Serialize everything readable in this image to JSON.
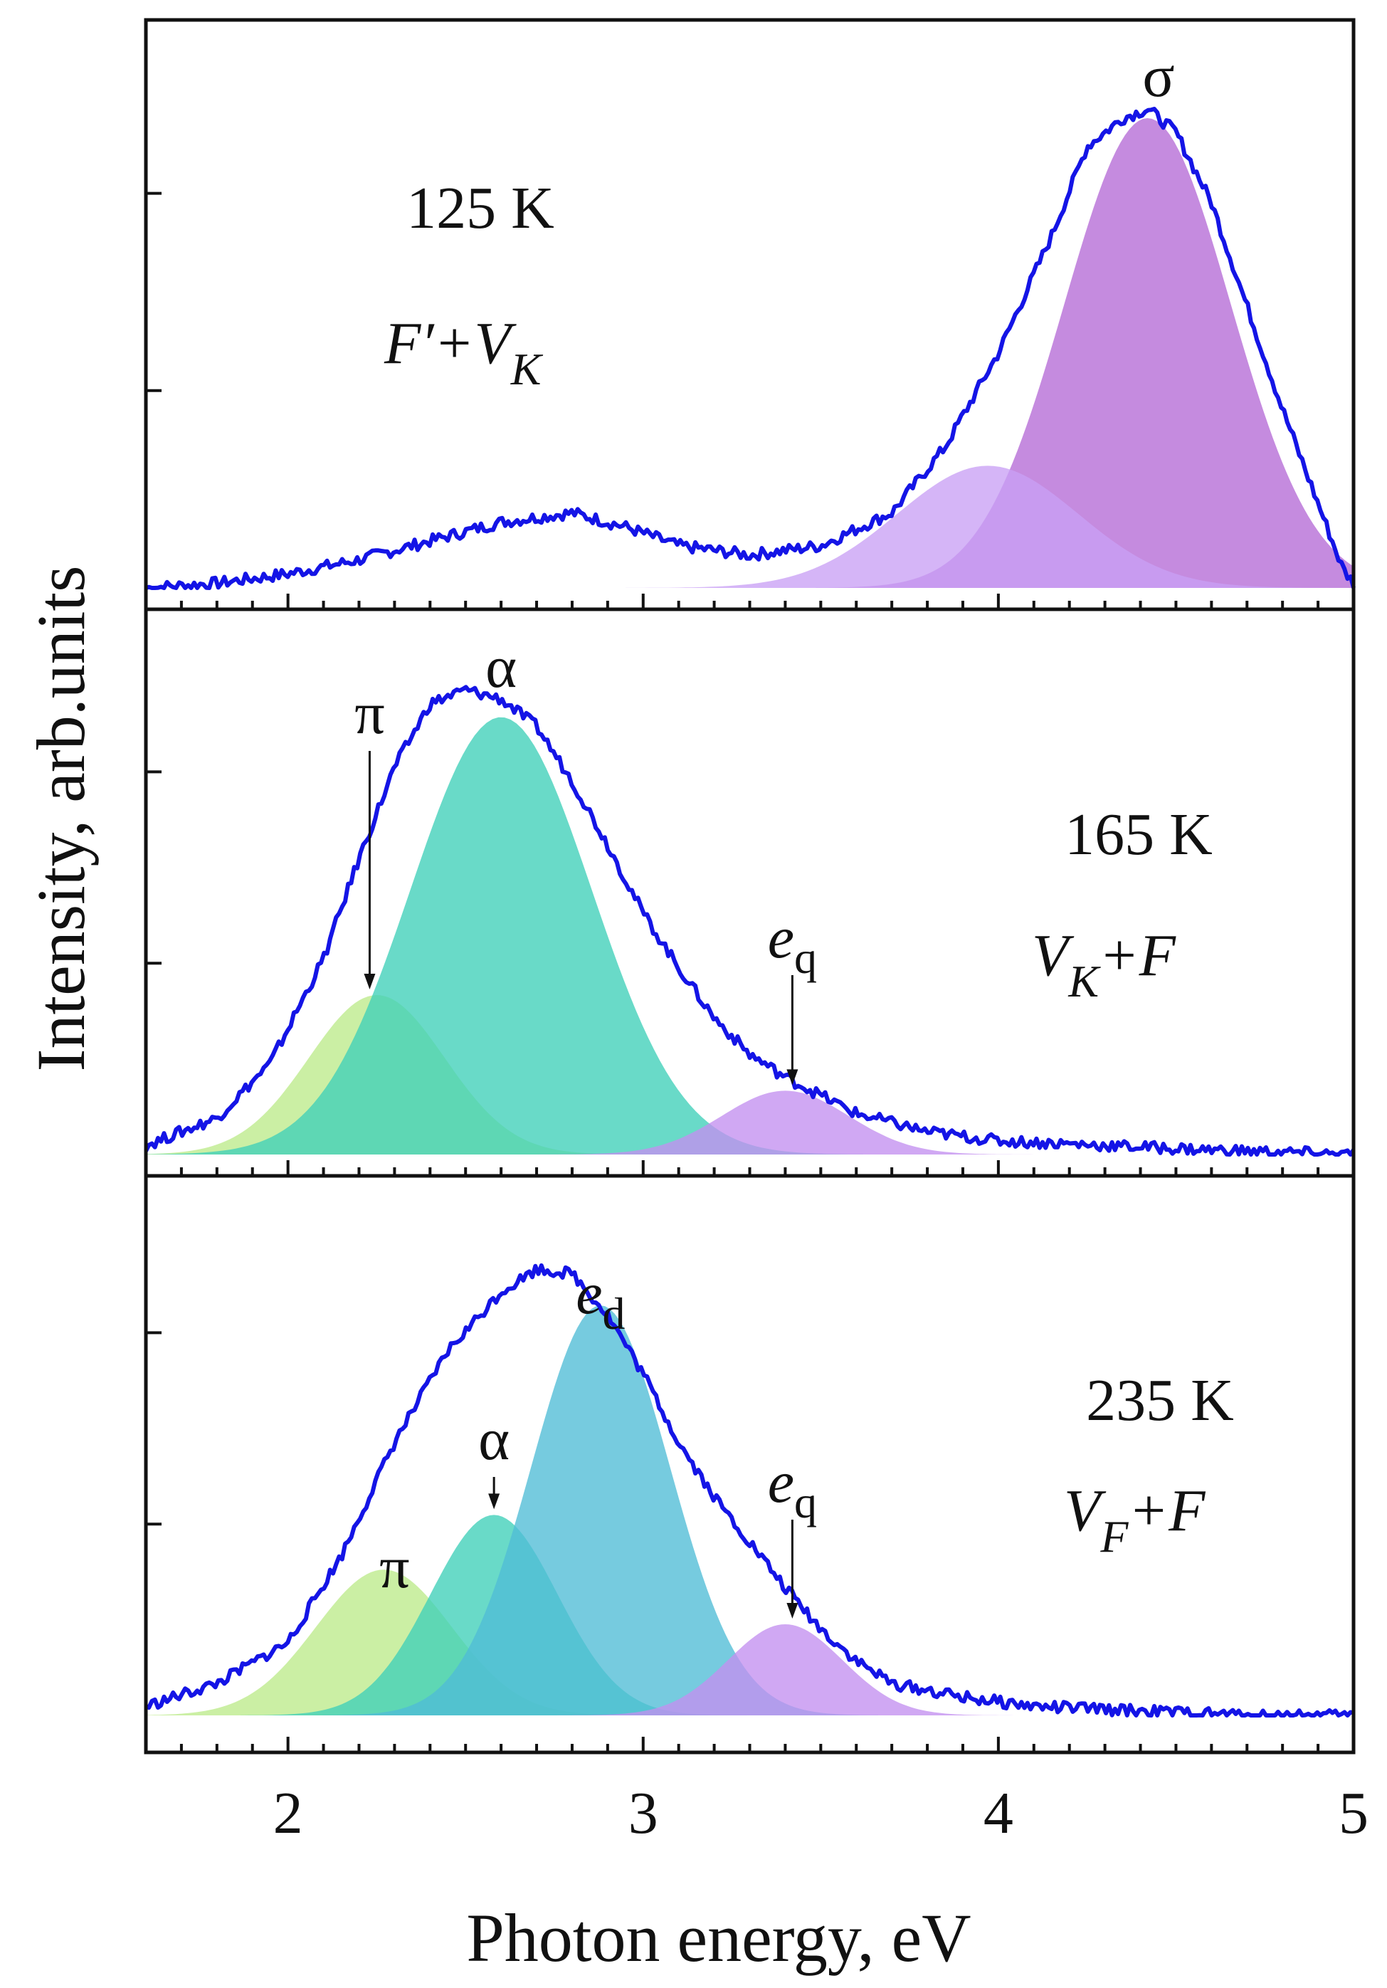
{
  "figure": {
    "xlabel": "Photon energy, eV",
    "ylabel": "Intensity, arb.units"
  },
  "colors": {
    "curve": "#1414e6",
    "frame": "#111111",
    "violet_main": "#b56ad6",
    "violet_light": "#c9a0f5",
    "teal": "#3fd0b8",
    "green_light": "#bdeb8a",
    "blue_teal": "#50bcd6",
    "violet_small": "#c38ff0"
  },
  "chart_data": [
    {
      "type": "line",
      "panel": "top",
      "title": "125 K",
      "subtitle": "F′+V_K",
      "subtitle_parts": {
        "main1": "F′+V",
        "sub1": "K"
      },
      "xlim": [
        1.6,
        5.0
      ],
      "ylim": [
        0,
        1.1
      ],
      "x_ticks": [
        2,
        3,
        4,
        5
      ],
      "measured": {
        "x": [
          1.6,
          1.8,
          2.0,
          2.2,
          2.4,
          2.6,
          2.8,
          2.95,
          3.1,
          3.3,
          3.5,
          3.7,
          3.85,
          4.0,
          4.15,
          4.25,
          4.35,
          4.42,
          4.5,
          4.6,
          4.7,
          4.8,
          4.9,
          4.97,
          5.0
        ],
        "y": [
          0.0,
          0.01,
          0.03,
          0.06,
          0.1,
          0.14,
          0.16,
          0.13,
          0.09,
          0.07,
          0.09,
          0.16,
          0.3,
          0.5,
          0.75,
          0.94,
          1.0,
          1.02,
          0.97,
          0.82,
          0.6,
          0.38,
          0.18,
          0.04,
          0.01
        ]
      },
      "bands": [
        {
          "label": "σ",
          "center": 4.42,
          "fwhm": 0.55,
          "amplitude": 1.0,
          "color": "#b56ad6"
        },
        {
          "label": "",
          "center": 3.97,
          "fwhm": 0.6,
          "amplitude": 0.26,
          "color": "#c9a0f5"
        }
      ]
    },
    {
      "type": "line",
      "panel": "middle",
      "title": "165 K",
      "subtitle": "V_K+F",
      "subtitle_parts": {
        "main1": "V",
        "sub1": "K",
        "main2": "+F"
      },
      "xlim": [
        1.6,
        5.0
      ],
      "ylim": [
        0,
        1.1
      ],
      "x_ticks": [
        2,
        3,
        4,
        5
      ],
      "measured": {
        "x": [
          1.6,
          1.8,
          1.95,
          2.1,
          2.2,
          2.3,
          2.4,
          2.5,
          2.6,
          2.7,
          2.8,
          2.9,
          3.0,
          3.1,
          3.2,
          3.3,
          3.4,
          3.5,
          3.6,
          3.8,
          4.0,
          4.3,
          4.6,
          5.0
        ],
        "y": [
          0.02,
          0.08,
          0.2,
          0.43,
          0.65,
          0.85,
          0.99,
          1.02,
          1.0,
          0.94,
          0.82,
          0.68,
          0.53,
          0.41,
          0.3,
          0.22,
          0.17,
          0.13,
          0.09,
          0.05,
          0.03,
          0.02,
          0.01,
          0.0
        ]
      },
      "bands": [
        {
          "label": "π",
          "center": 2.25,
          "fwhm": 0.45,
          "amplitude": 0.35,
          "color": "#bdeb8a"
        },
        {
          "label": "α",
          "center": 2.6,
          "fwhm": 0.6,
          "amplitude": 0.96,
          "color": "#3fd0b8"
        },
        {
          "label": "e_q",
          "center": 3.4,
          "fwhm": 0.42,
          "amplitude": 0.14,
          "color": "#c38ff0"
        }
      ],
      "annotations": [
        {
          "label": "π",
          "x": 2.23
        },
        {
          "label": "α",
          "x": 2.6
        },
        {
          "label": "e_q",
          "x": 3.42
        }
      ]
    },
    {
      "type": "line",
      "panel": "bottom",
      "title": "235 K",
      "subtitle": "V_F+F",
      "subtitle_parts": {
        "main1": "V",
        "sub1": "F",
        "main2": "+F"
      },
      "xlim": [
        1.6,
        5.0
      ],
      "ylim": [
        0,
        1.1
      ],
      "x_ticks": [
        2,
        3,
        4,
        5
      ],
      "x_tick_labels": [
        "2",
        "3",
        "4",
        "5"
      ],
      "measured": {
        "x": [
          1.6,
          1.8,
          2.0,
          2.15,
          2.3,
          2.45,
          2.6,
          2.7,
          2.8,
          2.9,
          3.0,
          3.1,
          3.2,
          3.3,
          3.4,
          3.5,
          3.6,
          3.7,
          3.9,
          4.1,
          4.4,
          4.7,
          5.0
        ],
        "y": [
          0.02,
          0.07,
          0.16,
          0.35,
          0.6,
          0.8,
          0.93,
          0.98,
          0.97,
          0.88,
          0.75,
          0.6,
          0.48,
          0.38,
          0.28,
          0.19,
          0.12,
          0.07,
          0.04,
          0.02,
          0.01,
          0.0,
          0.0
        ]
      },
      "bands": [
        {
          "label": "π",
          "center": 2.27,
          "fwhm": 0.45,
          "amplitude": 0.32,
          "color": "#bdeb8a"
        },
        {
          "label": "α",
          "center": 2.58,
          "fwhm": 0.42,
          "amplitude": 0.44,
          "color": "#3fd0b8"
        },
        {
          "label": "e_d",
          "center": 2.88,
          "fwhm": 0.46,
          "amplitude": 0.9,
          "color": "#50bcd6"
        },
        {
          "label": "e_q",
          "center": 3.4,
          "fwhm": 0.38,
          "amplitude": 0.2,
          "color": "#c38ff0"
        }
      ],
      "annotations": [
        {
          "label": "π",
          "x": 2.3
        },
        {
          "label": "α",
          "x": 2.58
        },
        {
          "label": "e_d",
          "x": 2.88
        },
        {
          "label": "e_q",
          "x": 3.42
        }
      ]
    }
  ]
}
